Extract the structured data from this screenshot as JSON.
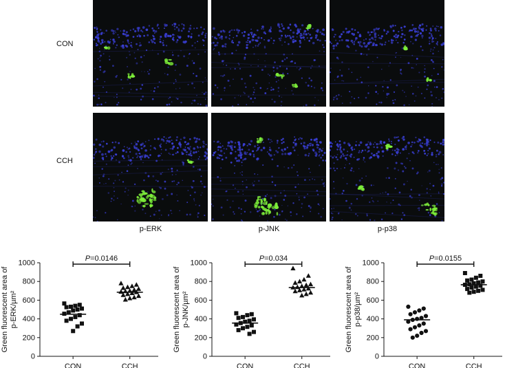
{
  "rows": [
    "CON",
    "CCH"
  ],
  "columns": [
    "p-ERK",
    "p-JNK",
    "p-p38"
  ],
  "colors": {
    "nuclei": "#3a3fd6",
    "signal": "#7ef03a",
    "background": "#0a0c0d"
  },
  "chart_data": [
    {
      "type": "scatter",
      "ylabel": "Green fluorescent area of p-ERK/µm²",
      "ylabel_lines": [
        "Green fluorescent area of",
        "p-ERK/µm²"
      ],
      "categories": [
        "CON",
        "CCH"
      ],
      "ylim": [
        0,
        1000
      ],
      "yticks": [
        0,
        200,
        400,
        600,
        800,
        1000
      ],
      "annotation": {
        "p_label": "P",
        "p_value": "=0.0146"
      },
      "markers": [
        "square",
        "triangle"
      ],
      "series": [
        {
          "category": "CON",
          "mean": 450,
          "values": [
            565,
            550,
            540,
            530,
            525,
            510,
            500,
            490,
            470,
            455,
            440,
            420,
            400,
            380,
            350,
            320,
            270
          ]
        },
        {
          "category": "CCH",
          "mean": 685,
          "values": [
            780,
            765,
            750,
            740,
            730,
            720,
            710,
            700,
            695,
            690,
            685,
            675,
            665,
            655,
            645,
            630,
            620,
            605
          ]
        }
      ]
    },
    {
      "type": "scatter",
      "ylabel": "Green fluorescent area of p-JNK/µm²",
      "ylabel_lines": [
        "Green fluorescent area of",
        "p-JNK/µm²"
      ],
      "categories": [
        "CON",
        "CCH"
      ],
      "ylim": [
        0,
        1000
      ],
      "yticks": [
        0,
        200,
        400,
        600,
        800,
        1000
      ],
      "annotation": {
        "p_label": "P",
        "p_value": "=0.034"
      },
      "markers": [
        "square",
        "triangle"
      ],
      "series": [
        {
          "category": "CON",
          "mean": 355,
          "values": [
            460,
            450,
            440,
            420,
            410,
            395,
            380,
            370,
            355,
            340,
            330,
            315,
            300,
            280,
            260,
            240
          ]
        },
        {
          "category": "CCH",
          "mean": 735,
          "values": [
            940,
            860,
            820,
            800,
            785,
            770,
            760,
            750,
            740,
            735,
            725,
            715,
            705,
            695,
            680,
            665,
            650
          ]
        }
      ]
    },
    {
      "type": "scatter",
      "ylabel": "Green fluorescent area of p-p38/µm²",
      "ylabel_lines": [
        "Green fluorescent area of",
        "p-p38/µm²"
      ],
      "categories": [
        "CON",
        "CCH"
      ],
      "ylim": [
        0,
        1000
      ],
      "yticks": [
        0,
        200,
        400,
        600,
        800,
        1000
      ],
      "annotation": {
        "p_label": "P",
        "p_value": "=0.0155"
      },
      "markers": [
        "circle",
        "square"
      ],
      "series": [
        {
          "category": "CON",
          "mean": 390,
          "values": [
            530,
            510,
            490,
            470,
            450,
            430,
            410,
            400,
            390,
            370,
            350,
            330,
            310,
            290,
            270,
            250,
            220,
            200
          ]
        },
        {
          "category": "CCH",
          "mean": 765,
          "values": [
            890,
            860,
            840,
            820,
            810,
            800,
            790,
            780,
            770,
            765,
            755,
            745,
            735,
            720,
            710,
            700,
            690,
            680
          ]
        }
      ]
    }
  ]
}
